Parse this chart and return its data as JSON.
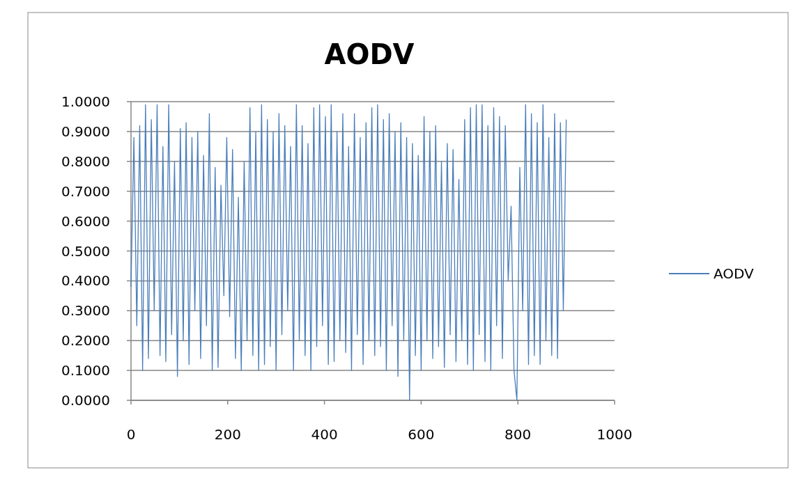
{
  "chart_data": {
    "type": "line",
    "title": "AODV",
    "x": [
      0,
      6,
      12,
      18,
      24,
      30,
      36,
      42,
      48,
      54,
      60,
      66,
      72,
      78,
      84,
      90,
      96,
      102,
      108,
      114,
      120,
      126,
      132,
      138,
      144,
      150,
      156,
      162,
      168,
      174,
      180,
      186,
      192,
      198,
      204,
      210,
      216,
      222,
      228,
      234,
      240,
      246,
      252,
      258,
      264,
      270,
      276,
      282,
      288,
      294,
      300,
      306,
      312,
      318,
      324,
      330,
      336,
      342,
      348,
      354,
      360,
      366,
      372,
      378,
      384,
      390,
      396,
      402,
      408,
      414,
      420,
      426,
      432,
      438,
      444,
      450,
      456,
      462,
      468,
      474,
      480,
      486,
      492,
      498,
      504,
      510,
      516,
      522,
      528,
      534,
      540,
      546,
      552,
      558,
      564,
      570,
      576,
      582,
      588,
      594,
      600,
      606,
      612,
      618,
      624,
      630,
      636,
      642,
      648,
      654,
      660,
      666,
      672,
      678,
      684,
      690,
      696,
      702,
      708,
      714,
      720,
      726,
      732,
      738,
      744,
      750,
      756,
      762,
      768,
      774,
      780,
      786,
      792,
      798,
      804,
      810,
      816,
      822,
      828,
      834,
      840,
      846,
      852,
      858,
      864,
      870,
      876,
      882,
      888,
      894,
      900
    ],
    "series": [
      {
        "name": "AODV",
        "color": "#4a7ebb",
        "values": [
          0.38,
          0.88,
          0.25,
          0.92,
          0.1,
          0.99,
          0.14,
          0.94,
          0.3,
          0.99,
          0.15,
          0.85,
          0.13,
          0.99,
          0.22,
          0.8,
          0.08,
          0.91,
          0.2,
          0.93,
          0.12,
          0.88,
          0.3,
          0.9,
          0.14,
          0.82,
          0.25,
          0.96,
          0.1,
          0.78,
          0.11,
          0.72,
          0.35,
          0.88,
          0.28,
          0.84,
          0.14,
          0.68,
          0.1,
          0.8,
          0.2,
          0.98,
          0.15,
          0.9,
          0.1,
          0.99,
          0.12,
          0.94,
          0.18,
          0.9,
          0.1,
          0.96,
          0.22,
          0.92,
          0.3,
          0.85,
          0.1,
          0.99,
          0.2,
          0.92,
          0.15,
          0.86,
          0.1,
          0.98,
          0.18,
          0.99,
          0.25,
          0.95,
          0.12,
          0.99,
          0.13,
          0.9,
          0.2,
          0.96,
          0.16,
          0.85,
          0.1,
          0.96,
          0.22,
          0.88,
          0.12,
          0.93,
          0.2,
          0.98,
          0.15,
          0.99,
          0.18,
          0.94,
          0.1,
          0.96,
          0.25,
          0.9,
          0.08,
          0.93,
          0.2,
          0.88,
          0.0,
          0.86,
          0.15,
          0.82,
          0.1,
          0.95,
          0.2,
          0.9,
          0.14,
          0.92,
          0.18,
          0.8,
          0.11,
          0.86,
          0.22,
          0.84,
          0.13,
          0.74,
          0.2,
          0.94,
          0.12,
          0.98,
          0.1,
          0.99,
          0.22,
          0.99,
          0.13,
          0.92,
          0.1,
          0.98,
          0.25,
          0.95,
          0.14,
          0.92,
          0.4,
          0.65,
          0.1,
          0.0,
          0.78,
          0.3,
          0.99,
          0.12,
          0.96,
          0.15,
          0.93,
          0.12,
          0.99,
          0.2,
          0.88,
          0.15,
          0.96,
          0.14,
          0.93,
          0.3,
          0.94
        ]
      }
    ],
    "xlim": [
      0,
      1000
    ],
    "xticks": [
      0,
      200,
      400,
      600,
      800,
      1000
    ],
    "ylim": [
      0,
      1
    ],
    "yticks": [
      {
        "value": 0,
        "label": "0.0000"
      },
      {
        "value": 0.1,
        "label": "0.1000"
      },
      {
        "value": 0.2,
        "label": "0.2000"
      },
      {
        "value": 0.3,
        "label": "0.3000"
      },
      {
        "value": 0.4,
        "label": "0.4000"
      },
      {
        "value": 0.5,
        "label": "0.5000"
      },
      {
        "value": 0.6,
        "label": "0.6000"
      },
      {
        "value": 0.7,
        "label": "0.7000"
      },
      {
        "value": 0.8,
        "label": "0.8000"
      },
      {
        "value": 0.9,
        "label": "0.9000"
      },
      {
        "value": 1,
        "label": "1.0000"
      }
    ],
    "grid": "y",
    "legend": "right",
    "marker": "none",
    "line_style": "solid"
  }
}
